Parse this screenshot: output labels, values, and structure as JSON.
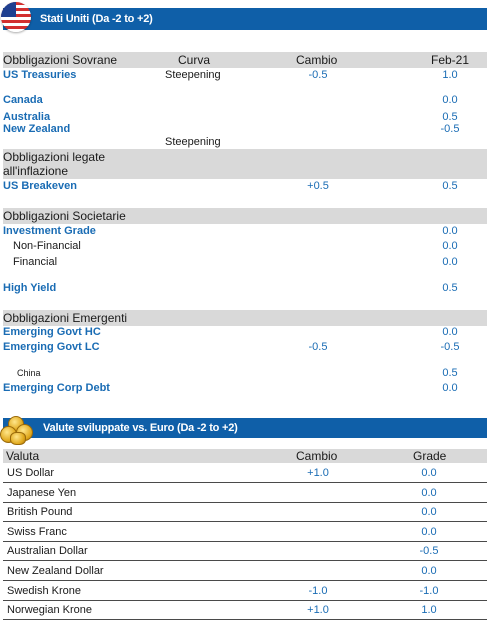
{
  "us_section": {
    "banner_title": "Stati Uniti (Da -2 to +2)",
    "flag_icon": "us-flag-icon",
    "headers": {
      "category": "Obbligazioni Sovrane",
      "curve": "Curva",
      "change": "Cambio",
      "current": "Feb-21"
    },
    "sovereign": [
      {
        "name": "US Treasuries",
        "curve": "Steepening",
        "change": "-0.5",
        "current": "1.0"
      },
      {
        "name": "Canada",
        "curve": "",
        "change": "",
        "current": "0.0"
      },
      {
        "name": "Australia",
        "curve": "",
        "change": "",
        "current": "0.5"
      },
      {
        "name": "New Zealand",
        "curve": "",
        "change": "",
        "current": "-0.5"
      }
    ],
    "nz_curve": "Steepening",
    "inflation": {
      "title_line1": "Obbligazioni legate",
      "title_line2": "all'inflazione",
      "rows": [
        {
          "name": "US Breakeven",
          "change": "+0.5",
          "current": "0.5"
        }
      ]
    },
    "corporate": {
      "title": "Obbligazioni Societarie",
      "rows": [
        {
          "name": "Investment Grade",
          "current": "0.0"
        },
        {
          "name": "Non-Financial",
          "current": "0.0"
        },
        {
          "name": "Financial",
          "current": "0.0"
        },
        {
          "name": "High Yield",
          "current": "0.5"
        }
      ]
    },
    "emerging": {
      "title": "Obbligazioni Emergenti",
      "rows": [
        {
          "name": "Emerging Govt HC",
          "change": "",
          "current": "0.0"
        },
        {
          "name": "Emerging Govt LC",
          "change": "-0.5",
          "current": "-0.5"
        },
        {
          "name": "China",
          "change": "",
          "current": "0.5"
        },
        {
          "name": "Emerging Corp Debt",
          "change": "",
          "current": "0.0"
        }
      ]
    }
  },
  "fx_section": {
    "banner_title": "Valute sviluppate vs. Euro (Da -2 to +2)",
    "coins_icon": "gold-coins-icon",
    "headers": {
      "currency": "Valuta",
      "change": "Cambio",
      "grade": "Grade"
    },
    "rows": [
      {
        "name": "US Dollar",
        "change": "+1.0",
        "grade": "0.0"
      },
      {
        "name": "Japanese Yen",
        "change": "",
        "grade": "0.0"
      },
      {
        "name": "British Pound",
        "change": "",
        "grade": "0.0"
      },
      {
        "name": "Swiss Franc",
        "change": "",
        "grade": "0.0"
      },
      {
        "name": "Australian Dollar",
        "change": "",
        "grade": "-0.5"
      },
      {
        "name": "New Zealand Dollar",
        "change": "",
        "grade": "0.0"
      },
      {
        "name": "Swedish Krone",
        "change": "-1.0",
        "grade": "-1.0"
      },
      {
        "name": "Norwegian Krone",
        "change": "+1.0",
        "grade": "1.0"
      }
    ]
  },
  "colors": {
    "banner": "#0f5fa8",
    "link_blue": "#1a6cb4",
    "band_gray": "#d9d9d9"
  }
}
